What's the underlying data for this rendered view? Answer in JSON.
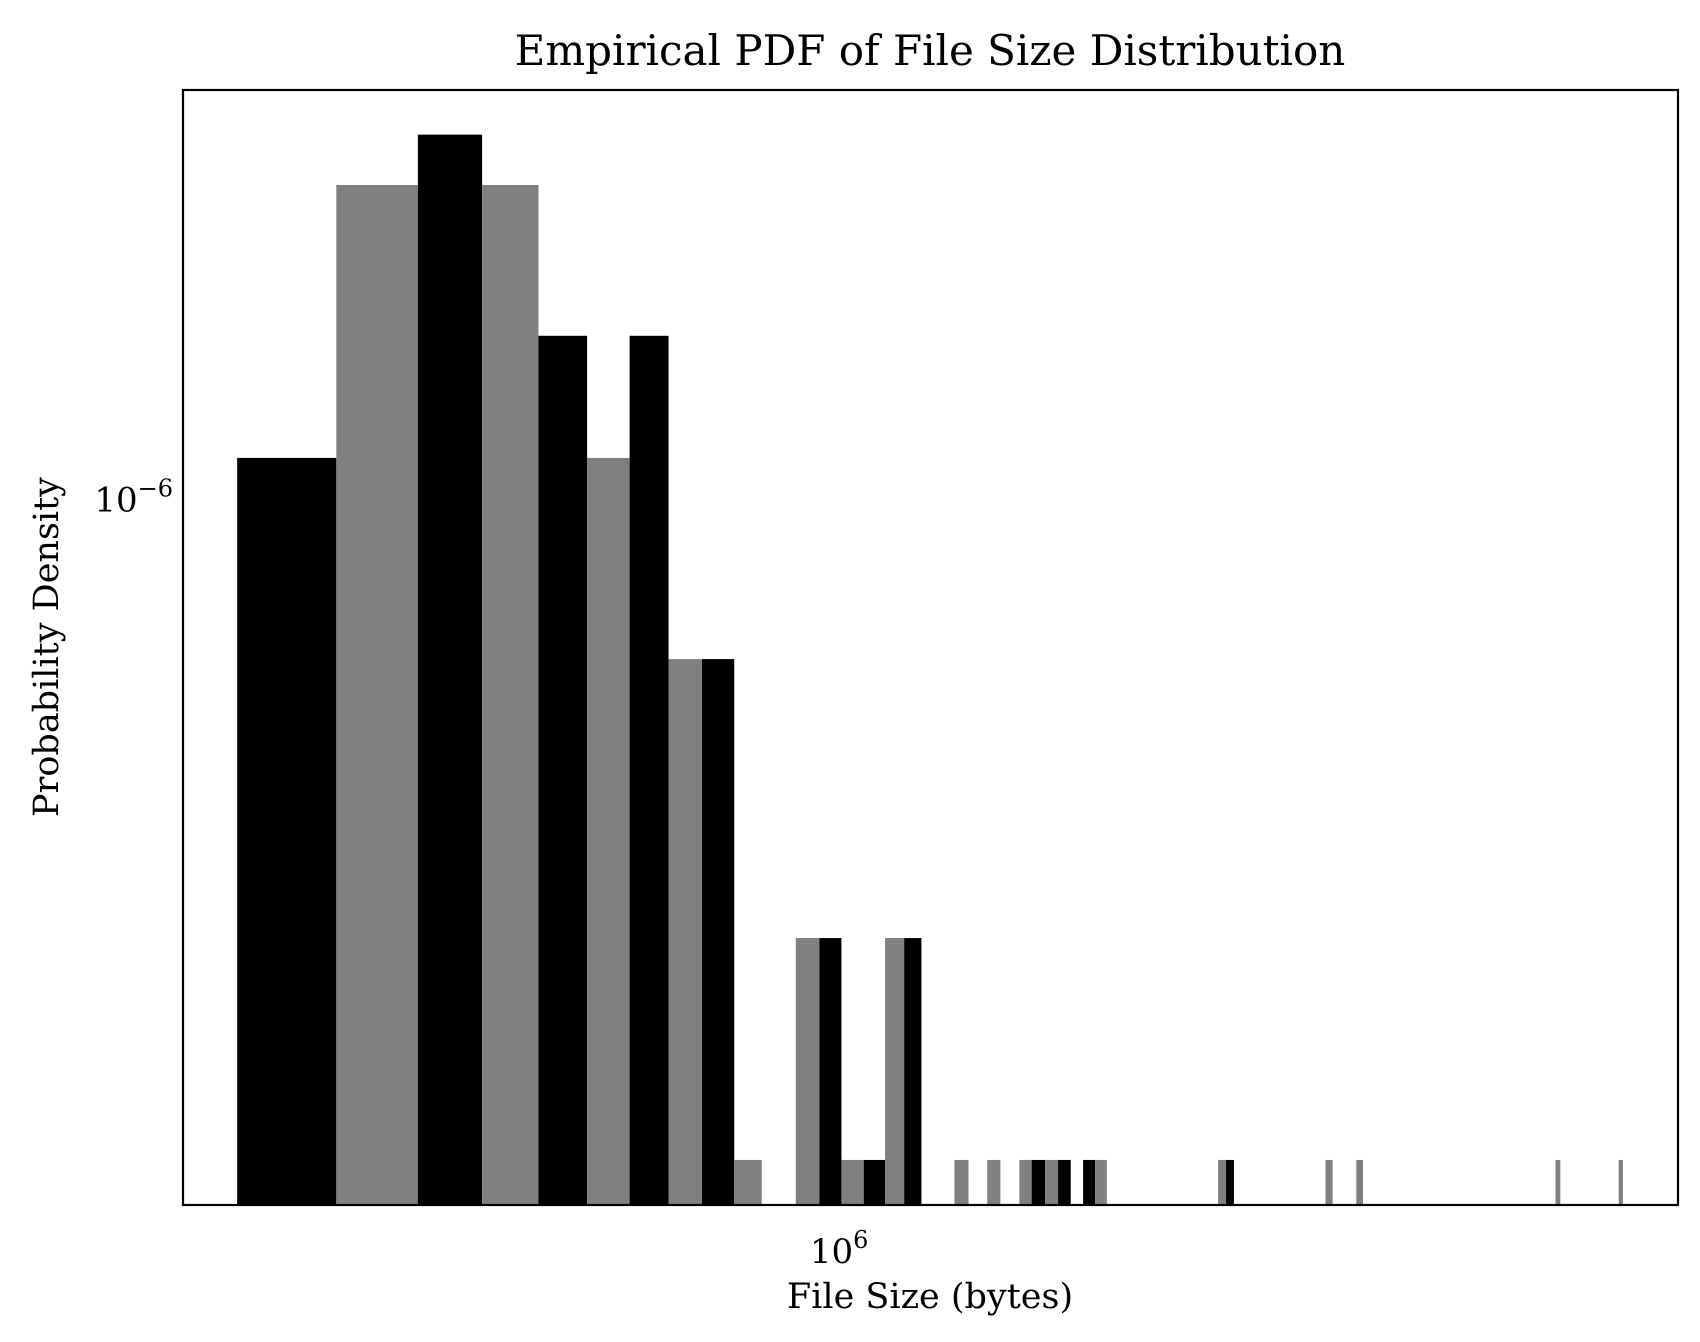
{
  "chart_data": {
    "type": "bar",
    "title": "Empirical PDF of File Size Distribution",
    "xlabel": "File Size (bytes)",
    "ylabel": "Probability Density",
    "x_scale": "log",
    "y_scale": "log",
    "xlim": [
      240000,
      6200000
    ],
    "ylim": [
      1.65e-07,
      2.8e-06
    ],
    "x_ticks": [
      {
        "value": 1000000,
        "base": "10",
        "exp": "6"
      }
    ],
    "y_ticks": [
      {
        "value": 1e-06,
        "base": "10",
        "exp": "−6"
      }
    ],
    "grid": false,
    "legend": "none",
    "colors": {
      "dark": "#000000",
      "gray": "#808080",
      "frame": "#000000"
    },
    "bins": [
      {
        "x0": 270000,
        "x1": 335000,
        "y": 1.1e-06,
        "color": "dark"
      },
      {
        "x0": 335000,
        "x1": 400000,
        "y": 2.2e-06,
        "color": "gray"
      },
      {
        "x0": 400000,
        "x1": 460000,
        "y": 2.5e-06,
        "color": "dark"
      },
      {
        "x0": 460000,
        "x1": 520000,
        "y": 2.2e-06,
        "color": "gray"
      },
      {
        "x0": 520000,
        "x1": 578000,
        "y": 1.5e-06,
        "color": "dark"
      },
      {
        "x0": 578000,
        "x1": 634000,
        "y": 1.1e-06,
        "color": "gray"
      },
      {
        "x0": 634000,
        "x1": 690000,
        "y": 1.5e-06,
        "color": "dark"
      },
      {
        "x0": 690000,
        "x1": 742000,
        "y": 6.6e-07,
        "color": "gray"
      },
      {
        "x0": 742000,
        "x1": 796000,
        "y": 6.6e-07,
        "color": "dark"
      },
      {
        "x0": 796000,
        "x1": 845000,
        "y": 1.85e-07,
        "color": "gray"
      },
      {
        "x0": 910000,
        "x1": 958000,
        "y": 3.25e-07,
        "color": "gray"
      },
      {
        "x0": 958000,
        "x1": 1005000,
        "y": 3.25e-07,
        "color": "dark"
      },
      {
        "x0": 1005000,
        "x1": 1055000,
        "y": 1.85e-07,
        "color": "gray"
      },
      {
        "x0": 1055000,
        "x1": 1105000,
        "y": 1.85e-07,
        "color": "dark"
      },
      {
        "x0": 1105000,
        "x1": 1152000,
        "y": 3.25e-07,
        "color": "gray"
      },
      {
        "x0": 1152000,
        "x1": 1196000,
        "y": 3.25e-07,
        "color": "dark"
      },
      {
        "x0": 1285000,
        "x1": 1325000,
        "y": 1.85e-07,
        "color": "gray"
      },
      {
        "x0": 1380000,
        "x1": 1420000,
        "y": 1.85e-07,
        "color": "gray"
      },
      {
        "x0": 1480000,
        "x1": 1520000,
        "y": 1.85e-07,
        "color": "gray"
      },
      {
        "x0": 1520000,
        "x1": 1565000,
        "y": 1.85e-07,
        "color": "dark"
      },
      {
        "x0": 1565000,
        "x1": 1610000,
        "y": 1.85e-07,
        "color": "gray"
      },
      {
        "x0": 1610000,
        "x1": 1655000,
        "y": 1.85e-07,
        "color": "dark"
      },
      {
        "x0": 1700000,
        "x1": 1745000,
        "y": 1.85e-07,
        "color": "dark"
      },
      {
        "x0": 1745000,
        "x1": 1790000,
        "y": 1.85e-07,
        "color": "gray"
      },
      {
        "x0": 2280000,
        "x1": 2320000,
        "y": 1.85e-07,
        "color": "gray"
      },
      {
        "x0": 2320000,
        "x1": 2360000,
        "y": 1.85e-07,
        "color": "dark"
      },
      {
        "x0": 2880000,
        "x1": 2925000,
        "y": 1.85e-07,
        "color": "gray"
      },
      {
        "x0": 3080000,
        "x1": 3125000,
        "y": 1.85e-07,
        "color": "gray"
      },
      {
        "x0": 4750000,
        "x1": 4800000,
        "y": 1.85e-07,
        "color": "gray"
      },
      {
        "x0": 5450000,
        "x1": 5500000,
        "y": 1.85e-07,
        "color": "gray"
      }
    ]
  }
}
